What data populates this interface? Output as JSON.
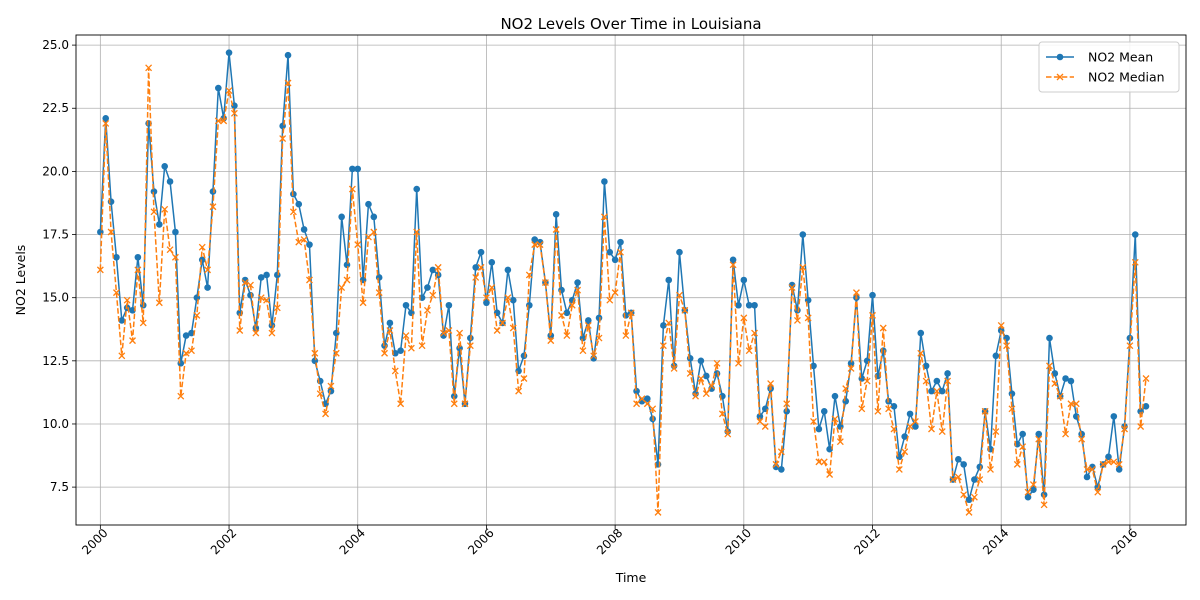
{
  "chart_data": {
    "type": "line",
    "title": "NO2 Levels Over Time in Louisiana",
    "xlabel": "Time",
    "ylabel": "NO2 Levels",
    "xlim": [
      "1999-08-15",
      "2016-11-15"
    ],
    "ylim": [
      6.0,
      25.4
    ],
    "x_ticks": [
      "2000",
      "2002",
      "2004",
      "2006",
      "2008",
      "2010",
      "2012",
      "2014",
      "2016"
    ],
    "y_ticks": [
      "7.5",
      "10.0",
      "12.5",
      "15.0",
      "17.5",
      "20.0",
      "22.5",
      "25.0"
    ],
    "grid": true,
    "legend_position": "top-right",
    "start_month": "2000-01",
    "series": [
      {
        "name": "NO2 Mean",
        "color": "#1f77b4",
        "style": "solid",
        "marker": "circle",
        "values": [
          17.6,
          22.1,
          18.8,
          16.6,
          14.1,
          14.6,
          14.5,
          16.6,
          14.7,
          21.9,
          19.2,
          17.9,
          20.2,
          19.6,
          17.6,
          12.4,
          13.5,
          13.6,
          15.0,
          16.5,
          15.4,
          19.2,
          23.3,
          22.1,
          24.7,
          22.6,
          14.4,
          15.7,
          15.1,
          13.8,
          15.8,
          15.9,
          13.9,
          15.9,
          21.8,
          24.6,
          19.1,
          18.7,
          17.7,
          17.1,
          12.5,
          11.7,
          10.8,
          11.3,
          13.6,
          18.2,
          16.3,
          20.1,
          20.1,
          15.7,
          18.7,
          18.2,
          15.8,
          13.1,
          14.0,
          12.8,
          12.9,
          14.7,
          14.4,
          19.3,
          15.0,
          15.4,
          16.1,
          15.9,
          13.5,
          14.7,
          11.1,
          13.0,
          10.8,
          13.4,
          16.2,
          16.8,
          14.8,
          16.4,
          14.4,
          14.0,
          16.1,
          14.9,
          12.1,
          12.7,
          14.7,
          17.3,
          17.2,
          15.6,
          13.5,
          18.3,
          15.3,
          14.4,
          14.9,
          15.6,
          13.4,
          14.1,
          12.6,
          14.2,
          19.6,
          16.8,
          16.5,
          17.2,
          14.3,
          14.4,
          11.3,
          10.9,
          11.0,
          10.2,
          8.4,
          13.9,
          15.7,
          12.3,
          16.8,
          14.5,
          12.6,
          11.2,
          12.5,
          11.9,
          11.4,
          12.0,
          11.1,
          9.7,
          16.5,
          14.7,
          15.7,
          14.7,
          14.7,
          10.3,
          10.6,
          11.4,
          8.3,
          8.2,
          10.5,
          15.5,
          14.5,
          17.5,
          14.9,
          12.3,
          9.8,
          10.5,
          9.0,
          11.1,
          9.9,
          10.9,
          12.4,
          15.0,
          11.8,
          12.5,
          15.1,
          11.9,
          12.9,
          10.9,
          10.7,
          8.7,
          9.5,
          10.4,
          9.9,
          13.6,
          12.3,
          11.3,
          11.7,
          11.3,
          12.0,
          7.8,
          8.6,
          8.4,
          7.0,
          7.8,
          8.3,
          10.5,
          9.0,
          12.7,
          13.7,
          13.4,
          11.2,
          9.2,
          9.6,
          7.1,
          7.4,
          9.6,
          7.2,
          13.4,
          12.0,
          11.1,
          11.8,
          11.7,
          10.3,
          9.6,
          7.9,
          8.3,
          7.5,
          8.4,
          8.7,
          10.3,
          8.2,
          9.9,
          13.4,
          17.5,
          10.5,
          10.7
        ]
      },
      {
        "name": "NO2 Median",
        "color": "#ff7f0e",
        "style": "dashed",
        "marker": "x",
        "values": [
          16.1,
          21.9,
          17.6,
          15.2,
          12.7,
          14.9,
          13.3,
          16.1,
          14.0,
          24.1,
          18.4,
          14.8,
          18.5,
          16.9,
          16.6,
          11.1,
          12.8,
          12.9,
          14.3,
          17.0,
          16.1,
          18.6,
          22.0,
          22.0,
          23.2,
          22.3,
          13.7,
          15.6,
          15.5,
          13.6,
          15.0,
          14.9,
          13.6,
          14.6,
          21.3,
          23.5,
          18.4,
          17.2,
          17.3,
          15.7,
          12.8,
          11.2,
          10.4,
          11.5,
          12.8,
          15.4,
          15.7,
          19.3,
          17.1,
          14.8,
          17.4,
          17.6,
          15.2,
          12.8,
          13.7,
          12.1,
          10.8,
          13.5,
          13.0,
          17.6,
          13.1,
          14.5,
          15.1,
          16.2,
          13.6,
          13.7,
          10.8,
          13.6,
          10.8,
          13.1,
          15.8,
          16.2,
          15.0,
          15.4,
          13.7,
          14.0,
          15.0,
          13.8,
          11.3,
          11.8,
          15.9,
          17.1,
          17.1,
          15.6,
          13.3,
          17.7,
          14.3,
          13.5,
          14.7,
          15.3,
          12.9,
          13.9,
          12.7,
          13.4,
          18.2,
          14.9,
          15.2,
          16.8,
          13.5,
          14.4,
          10.8,
          11.0,
          10.8,
          10.6,
          6.5,
          13.1,
          14.0,
          12.2,
          15.1,
          14.5,
          12.0,
          11.1,
          11.8,
          11.2,
          11.5,
          12.4,
          10.4,
          9.6,
          16.3,
          12.4,
          14.2,
          12.9,
          13.6,
          10.1,
          9.9,
          11.6,
          8.4,
          8.9,
          10.8,
          15.4,
          14.1,
          16.2,
          14.2,
          10.1,
          8.5,
          8.5,
          8.0,
          10.2,
          9.3,
          11.4,
          12.2,
          15.2,
          10.6,
          11.7,
          14.3,
          10.5,
          13.8,
          10.6,
          9.8,
          8.2,
          8.9,
          9.9,
          10.1,
          12.8,
          11.7,
          9.8,
          11.3,
          9.7,
          11.7,
          7.8,
          7.9,
          7.2,
          6.5,
          7.1,
          7.8,
          10.5,
          8.2,
          9.7,
          13.9,
          13.1,
          10.6,
          8.4,
          9.1,
          7.3,
          7.6,
          9.4,
          6.8,
          12.3,
          11.6,
          11.1,
          9.6,
          10.8,
          10.8,
          9.4,
          8.2,
          8.2,
          7.3,
          8.4,
          8.5,
          8.5,
          8.4,
          9.8,
          13.1,
          16.4,
          9.9,
          11.8
        ]
      }
    ]
  }
}
